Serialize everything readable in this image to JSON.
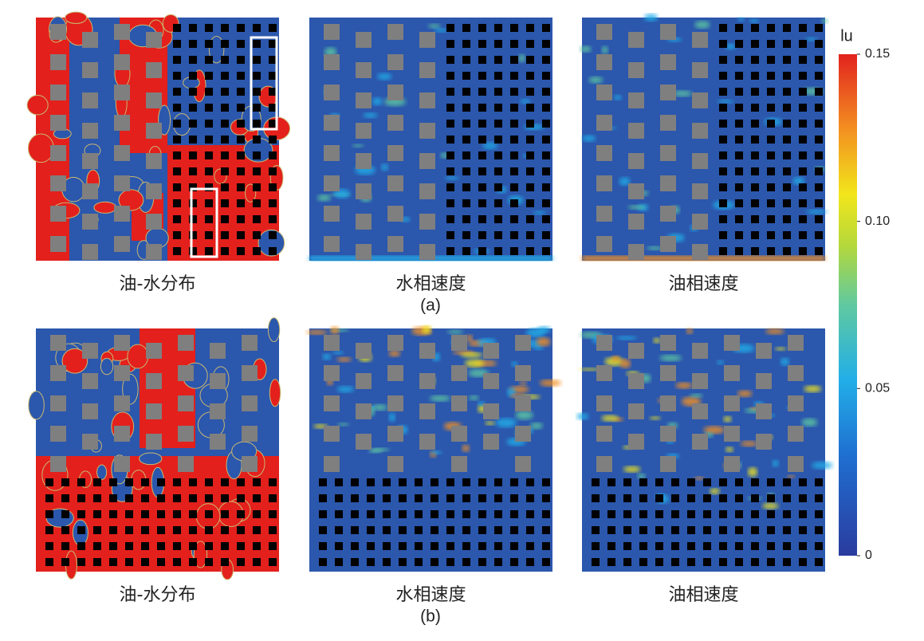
{
  "rows": [
    {
      "label": "(a)",
      "panels": [
        {
          "caption": "油-水分布"
        },
        {
          "caption": "水相速度"
        },
        {
          "caption": "油相速度"
        }
      ]
    },
    {
      "label": "(b)",
      "panels": [
        {
          "caption": "油-水分布"
        },
        {
          "caption": "水相速度"
        },
        {
          "caption": "油相速度"
        }
      ]
    }
  ],
  "colorbar": {
    "label": "lu",
    "lim": [
      0,
      0.15
    ],
    "ticks": [
      0,
      0.05,
      {
        "value": 0.1,
        "label": "0.10"
      },
      0.15
    ]
  }
}
